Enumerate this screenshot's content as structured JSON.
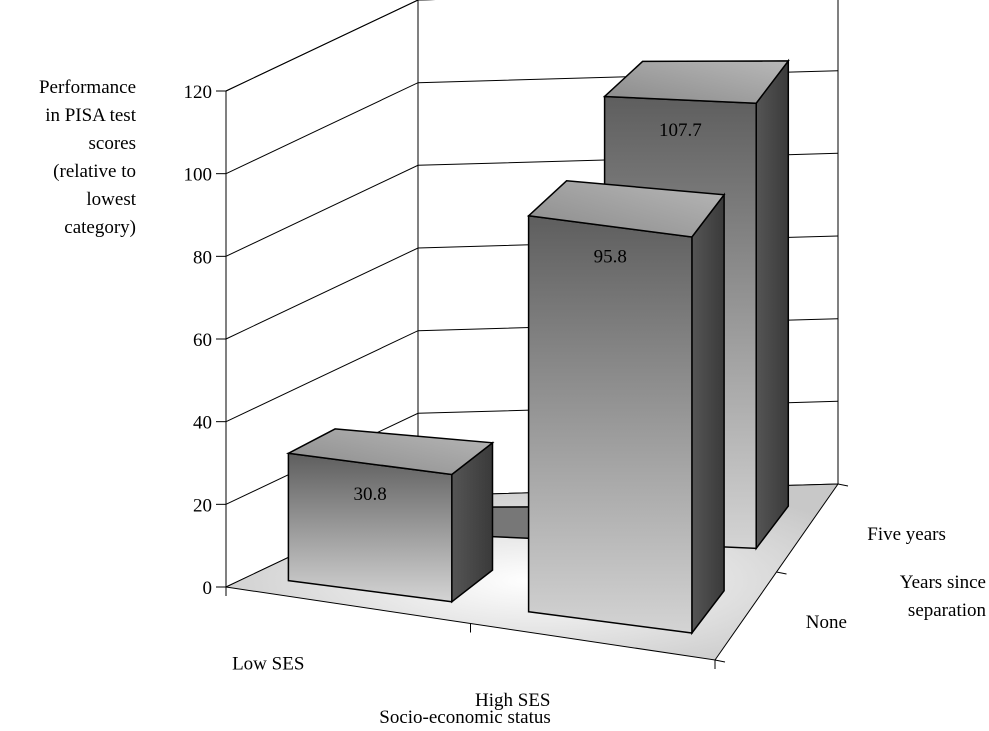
{
  "chart_data": {
    "type": "bar",
    "title": "",
    "ylabel_lines": [
      "Performance",
      "in PISA test",
      "scores",
      "(relative to",
      "lowest",
      "category)"
    ],
    "xlabel": "Socio-economic status",
    "zlabel_lines": [
      "Years since",
      "separation"
    ],
    "categories": [
      "Low SES",
      "High SES"
    ],
    "depth_categories": [
      "None",
      "Five years"
    ],
    "series": [
      {
        "name": "None",
        "values": [
          30.8,
          95.8
        ]
      },
      {
        "name": "Five years",
        "values": [
          0.0,
          107.7
        ]
      }
    ],
    "ylim": [
      0,
      120
    ],
    "yticks": [
      0,
      20,
      40,
      60,
      80,
      100,
      120
    ],
    "grid": true
  }
}
